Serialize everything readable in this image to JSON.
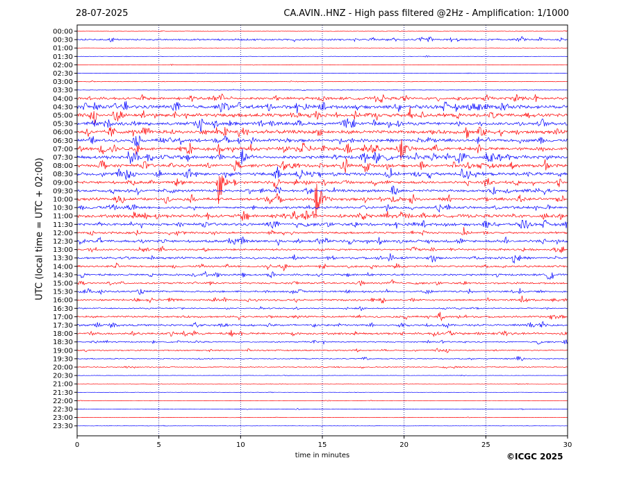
{
  "header": {
    "date": "28-07-2025",
    "title": "CA.AVIN..HNZ - High pass filtered @2Hz - Amplification: 1/1000"
  },
  "footer": {
    "credit": "©ICGC 2025"
  },
  "colors": {
    "even_rows": "#ff0000",
    "odd_rows": "#0000ff",
    "grid": "#000080",
    "frame": "#000000"
  },
  "chart_data": {
    "type": "line",
    "subtype": "helicorder",
    "xlabel": "time in minutes",
    "ylabel": "UTC (local time = UTC + 02:00)",
    "xlim": [
      0,
      30
    ],
    "xticks": [
      0,
      5,
      10,
      15,
      20,
      25,
      30
    ],
    "grid": "vertical dotted lines at each x tick",
    "row_colors": "alternating red / blue",
    "rows": [
      "00:00",
      "00:30",
      "01:00",
      "01:30",
      "02:00",
      "02:30",
      "03:00",
      "03:30",
      "04:00",
      "04:30",
      "05:00",
      "05:30",
      "06:00",
      "06:30",
      "07:00",
      "07:30",
      "08:00",
      "08:30",
      "09:00",
      "09:30",
      "10:00",
      "10:30",
      "11:00",
      "11:30",
      "12:00",
      "12:30",
      "13:00",
      "13:30",
      "14:00",
      "14:30",
      "15:00",
      "15:30",
      "16:00",
      "16:30",
      "17:00",
      "17:30",
      "18:00",
      "18:30",
      "19:00",
      "19:30",
      "20:00",
      "20:30",
      "21:00",
      "21:30",
      "22:00",
      "22:30",
      "23:00",
      "23:30"
    ],
    "noise_level": [
      0.3,
      1.4,
      0.3,
      0.3,
      0.3,
      0.3,
      0.5,
      0.5,
      2.2,
      2.8,
      2.8,
      2.5,
      2.7,
      2.4,
      2.6,
      2.8,
      2.4,
      2.6,
      2.2,
      2.0,
      2.2,
      2.0,
      2.6,
      2.2,
      1.6,
      2.0,
      1.5,
      1.7,
      1.6,
      1.6,
      1.4,
      1.5,
      1.4,
      1.0,
      1.5,
      1.7,
      1.7,
      1.0,
      1.0,
      0.8,
      0.8,
      0.3,
      0.3,
      0.3,
      0.3,
      0.4,
      0.3,
      0.3
    ],
    "events": [
      {
        "row": "07:00",
        "minute": 19.8,
        "amplitude": 16
      },
      {
        "row": "07:00",
        "minute": 1.3,
        "amplitude": 5
      },
      {
        "row": "07:30",
        "minute": 3.1,
        "amplitude": 12
      },
      {
        "row": "08:30",
        "minute": 3.0,
        "amplitude": 13
      },
      {
        "row": "08:30",
        "minute": 23.6,
        "amplitude": 7
      },
      {
        "row": "08:00",
        "minute": 25.2,
        "amplitude": 4
      },
      {
        "row": "09:00",
        "minute": 8.6,
        "amplitude": 42
      },
      {
        "row": "10:00",
        "minute": 14.6,
        "amplitude": 44
      },
      {
        "row": "09:30",
        "minute": 13.9,
        "amplitude": 4
      },
      {
        "row": "05:00",
        "minute": 17.7,
        "amplitude": 4
      },
      {
        "row": "04:00",
        "minute": 27.2,
        "amplitude": 3
      },
      {
        "row": "12:30",
        "minute": 0.2,
        "amplitude": 4
      },
      {
        "row": "13:00",
        "minute": 20.5,
        "amplitude": 5
      },
      {
        "row": "16:00",
        "minute": 27.2,
        "amplitude": 6
      },
      {
        "row": "16:00",
        "minute": 29.1,
        "amplitude": 3
      },
      {
        "row": "18:30",
        "minute": 28.2,
        "amplitude": 4
      },
      {
        "row": "18:30",
        "minute": 29.8,
        "amplitude": 5
      },
      {
        "row": "19:30",
        "minute": 26.8,
        "amplitude": 3
      }
    ]
  }
}
